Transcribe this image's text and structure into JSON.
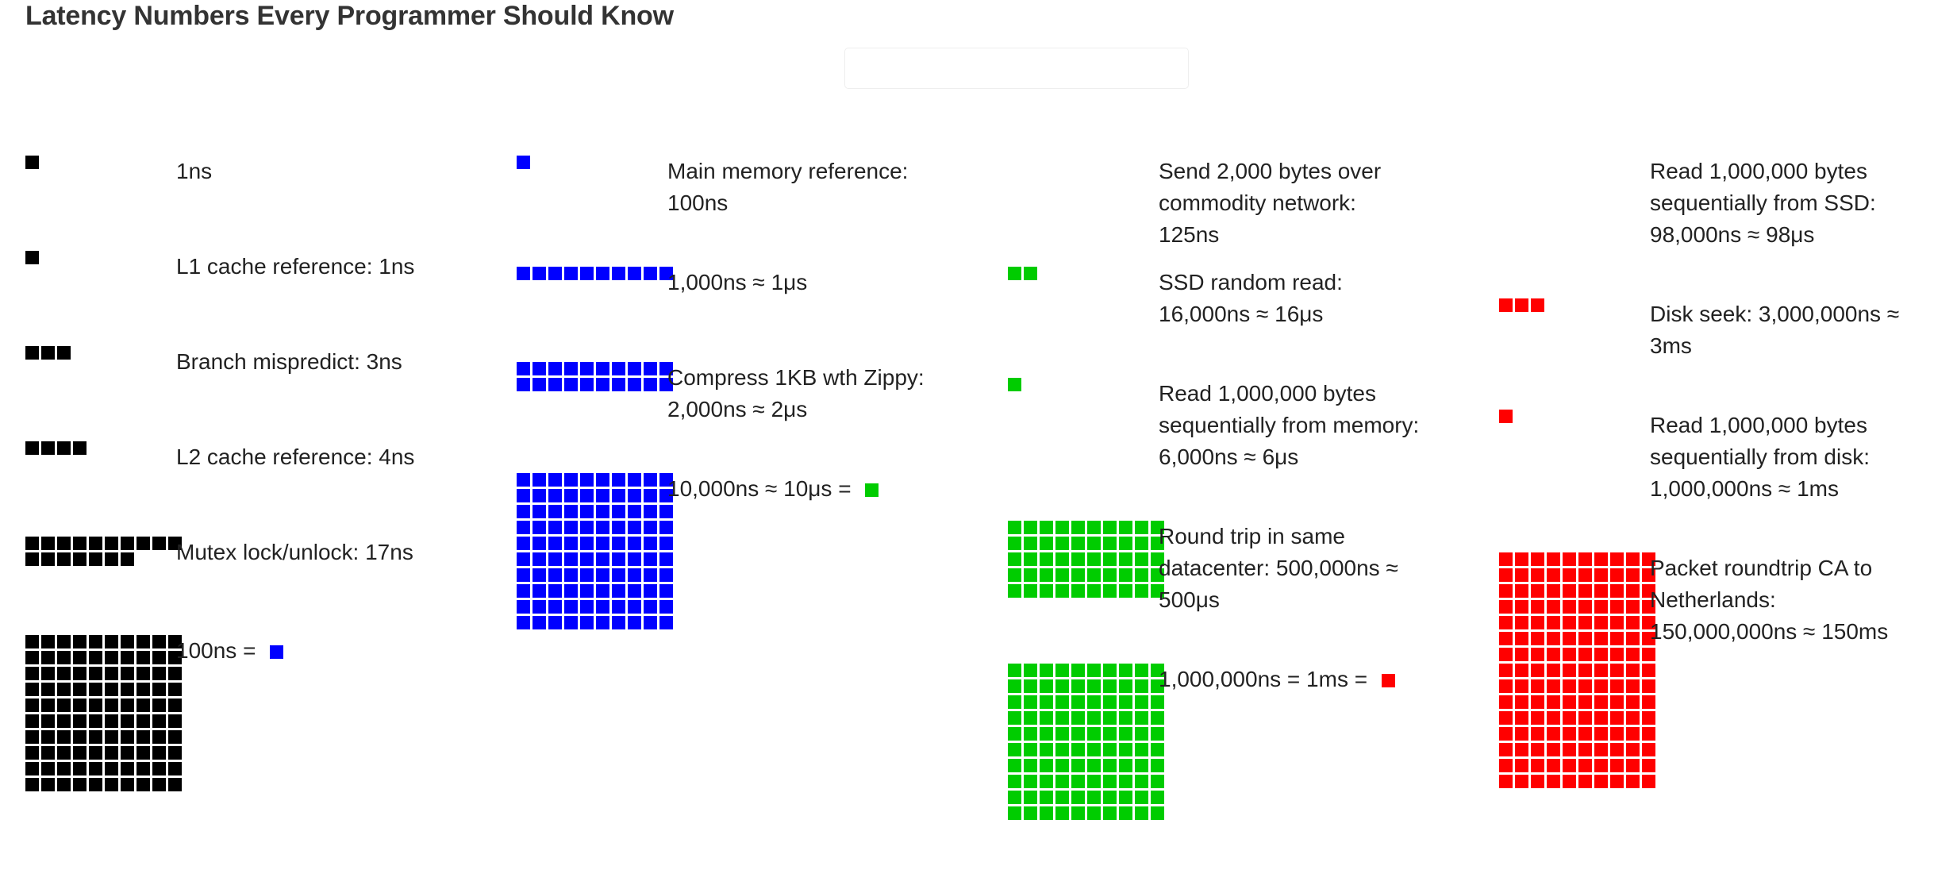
{
  "page": {
    "title": "Latency Numbers Every Programmer Should Know"
  },
  "colors": {
    "black": "#000000",
    "blue": "#0000ff",
    "green": "#00cc00",
    "red": "#ff0000"
  },
  "columns": [
    {
      "rows": [
        {
          "label": "1ns",
          "units": 1,
          "color": "black"
        },
        {
          "label": "L1 cache reference: 1ns",
          "units": 1,
          "color": "black"
        },
        {
          "label": "Branch mispredict: 3ns",
          "units": 3,
          "color": "black"
        },
        {
          "label": "L2 cache reference: 4ns",
          "units": 4,
          "color": "black"
        },
        {
          "label": "Mutex lock/unlock: 17ns",
          "units": 17,
          "color": "black"
        },
        {
          "label": "100ns = ",
          "units": 100,
          "color": "black",
          "equals_color": "blue"
        }
      ]
    },
    {
      "rows": [
        {
          "label": "Main memory reference: 100ns",
          "units": 1,
          "color": "blue"
        },
        {
          "label": "1,000ns ≈ 1μs",
          "units": 10,
          "color": "blue"
        },
        {
          "label": "Compress 1KB wth Zippy: 2,000ns ≈ 2μs",
          "units": 20,
          "color": "blue"
        },
        {
          "label": "10,000ns ≈ 10μs = ",
          "units": 100,
          "color": "blue",
          "equals_color": "green"
        }
      ]
    },
    {
      "rows": [
        {
          "label": "Send 2,000 bytes over commodity network: 125ns",
          "units": 0,
          "color": "green"
        },
        {
          "label": "SSD random read: 16,000ns ≈ 16μs",
          "units": 2,
          "color": "green"
        },
        {
          "label": "Read 1,000,000 bytes sequentially from memory: 6,000ns ≈ 6μs",
          "units": 1,
          "color": "green"
        },
        {
          "label": "Round trip in same datacenter: 500,000ns ≈ 500μs",
          "units": 50,
          "color": "green"
        },
        {
          "label": "1,000,000ns = 1ms = ",
          "units": 100,
          "color": "green",
          "equals_color": "red"
        }
      ]
    },
    {
      "rows": [
        {
          "label": "Read 1,000,000 bytes sequentially from SSD: 98,000ns ≈ 98μs",
          "units": 0,
          "color": "red"
        },
        {
          "label": "Disk seek: 3,000,000ns ≈ 3ms",
          "units": 3,
          "color": "red"
        },
        {
          "label": "Read 1,000,000 bytes sequentially from disk: 1,000,000ns ≈ 1ms",
          "units": 1,
          "color": "red"
        },
        {
          "label": "Packet roundtrip CA to Netherlands: 150,000,000ns ≈ 150ms",
          "units": 150,
          "color": "red"
        }
      ]
    }
  ]
}
